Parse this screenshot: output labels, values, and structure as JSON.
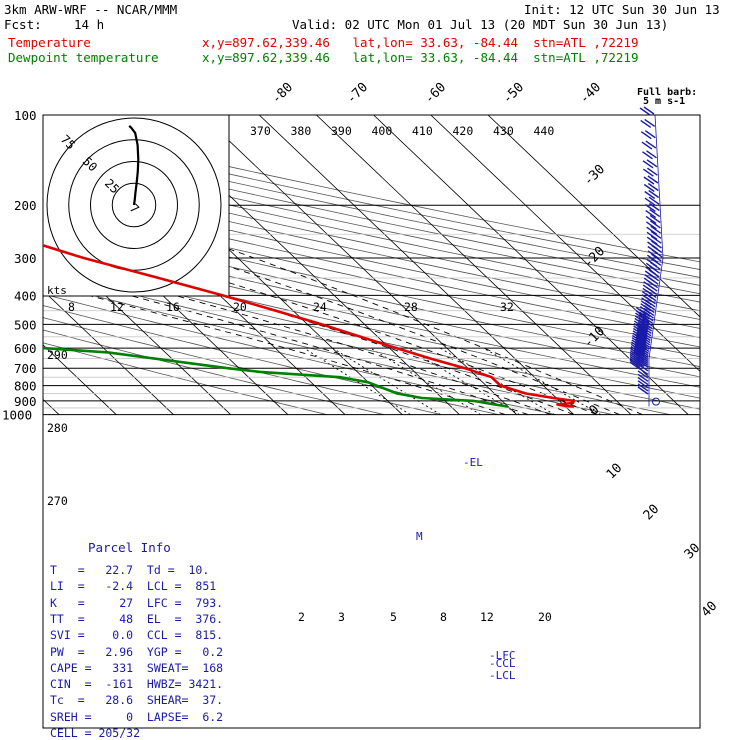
{
  "header": {
    "model": "3km ARW-WRF -- NCAR/MMM",
    "init": "Init: 12 UTC Sun 30 Jun 13",
    "fcst_label": "Fcst:",
    "fcst_value": "14 h",
    "valid": "Valid: 02 UTC Mon 01 Jul 13 (20 MDT Sun 30 Jun 13)",
    "temp_label": "Temperature",
    "temp_info": "x,y=897.62,339.46   lat,lon= 33.63, -84.44  stn=ATL ,72219",
    "dew_label": "Dewpoint temperature",
    "dew_info": "x,y=897.62,339.46   lat,lon= 33.63, -84.44  stn=ATL ,72219"
  },
  "colors": {
    "temperature": "#e00000",
    "dewpoint": "#008000",
    "parcel_text": "#1a1aaa",
    "wind": "#1a1aaa",
    "dry_adiabat": "#909090"
  },
  "full_barb": {
    "line1": "Full barb:",
    "line2": "5 m s-1"
  },
  "parcel": {
    "title": "Parcel Info",
    "rows": [
      "T   =   22.7  Td =  10.",
      "LI  =   -2.4  LCL =  851",
      "K   =     27  LFC =  793.",
      "TT  =     48  EL  =  376.",
      "SVI =    0.0  CCL =  815.",
      "PW  =   2.96  YGP =   0.2",
      "CAPE =   331  SWEAT=  168",
      "CIN  =  -161  HWBZ= 3421.",
      "Tc  =   28.6  SHEAR=  37.",
      "SREH =     0  LAPSE=  6.2",
      "CELL = 205/32"
    ]
  },
  "hodograph": {
    "ring_labels": [
      "7",
      "25",
      "50",
      "75"
    ],
    "unit": "kts"
  },
  "levels_markers": {
    "el": "-EL",
    "lfc": "-LFC",
    "ccl": "-CCL",
    "lcl": "-LCL",
    "m": "M"
  },
  "chart_data": {
    "type": "line",
    "title": "",
    "pressure_levels": [
      100,
      200,
      300,
      400,
      500,
      600,
      700,
      800,
      900,
      1000
    ],
    "isotherm_labels": [
      "-80",
      "-70",
      "-60",
      "-50",
      "-40",
      "-30",
      "-20",
      "-10",
      "0",
      "10",
      "20",
      "30",
      "40"
    ],
    "theta_labels_top": [
      "370",
      "380",
      "390",
      "400",
      "410",
      "420",
      "430",
      "440"
    ],
    "theta_labels_left": [
      "290",
      "280",
      "270"
    ],
    "mixing_ratio_labels_700": [
      "2",
      "3",
      "5",
      "8",
      "12",
      "20"
    ],
    "mixing_ratio_labels_200": [
      "8",
      "12",
      "16",
      "20",
      "24",
      "28",
      "32"
    ],
    "series": [
      {
        "name": "Temperature",
        "color": "#e00000",
        "points": [
          [
            100,
            -48
          ],
          [
            130,
            -52
          ],
          [
            150,
            -54
          ],
          [
            175,
            -56.5
          ],
          [
            200,
            -55.5
          ],
          [
            250,
            -46
          ],
          [
            300,
            -37
          ],
          [
            350,
            -27.5
          ],
          [
            400,
            -19.5
          ],
          [
            450,
            -13
          ],
          [
            500,
            -7.5
          ],
          [
            550,
            -3
          ],
          [
            600,
            1.2
          ],
          [
            650,
            5.2
          ],
          [
            700,
            9.5
          ],
          [
            750,
            12.5
          ],
          [
            800,
            12.5
          ],
          [
            850,
            15.5
          ],
          [
            880,
            19.5
          ],
          [
            900,
            22.5
          ],
          [
            915,
            22
          ],
          [
            925,
            19
          ],
          [
            935,
            20
          ],
          [
            940,
            21.5
          ]
        ]
      },
      {
        "name": "Dewpoint temperature",
        "color": "#008000",
        "points": [
          [
            100,
            -79
          ],
          [
            130,
            -82
          ],
          [
            150,
            -85
          ],
          [
            175,
            -87
          ],
          [
            200,
            -86
          ],
          [
            220,
            -81
          ],
          [
            260,
            -65
          ],
          [
            300,
            -53
          ],
          [
            330,
            -48
          ],
          [
            345,
            -53
          ],
          [
            370,
            -73
          ],
          [
            400,
            -82
          ],
          [
            440,
            -74
          ],
          [
            480,
            -63
          ],
          [
            500,
            -58
          ],
          [
            550,
            -67
          ],
          [
            590,
            -66
          ],
          [
            620,
            -50
          ],
          [
            700,
            -32
          ],
          [
            720,
            -27
          ],
          [
            750,
            -14
          ],
          [
            780,
            -10
          ],
          [
            850,
            -7
          ],
          [
            880,
            -3.5
          ],
          [
            900,
            5
          ],
          [
            925,
            8
          ],
          [
            940,
            10
          ]
        ]
      }
    ],
    "hodograph_trace": [
      [
        0,
        0
      ],
      [
        0.3,
        -2
      ],
      [
        0.6,
        -5
      ],
      [
        1.1,
        -9
      ],
      [
        1.6,
        -14
      ],
      [
        1.8,
        -19
      ],
      [
        1.5,
        -25
      ],
      [
        0.5,
        -30
      ],
      [
        -1,
        -32
      ],
      [
        -2,
        -33
      ]
    ],
    "wind_barbs_pressure": [
      100,
      110,
      120,
      130,
      140,
      150,
      160,
      170,
      180,
      190,
      200,
      210,
      220,
      230,
      240,
      250,
      260,
      270,
      280,
      290,
      300,
      310,
      320,
      330,
      340,
      350,
      360,
      370,
      380,
      390,
      400,
      410,
      420,
      430,
      440,
      450,
      460,
      470,
      480,
      490,
      500,
      510,
      520,
      530,
      540,
      550,
      560,
      570,
      580,
      590,
      600,
      610,
      620,
      630,
      640,
      650,
      660,
      670,
      680,
      690,
      700,
      720,
      740,
      760,
      780,
      800,
      820,
      840,
      860,
      880,
      900,
      920,
      940
    ]
  }
}
